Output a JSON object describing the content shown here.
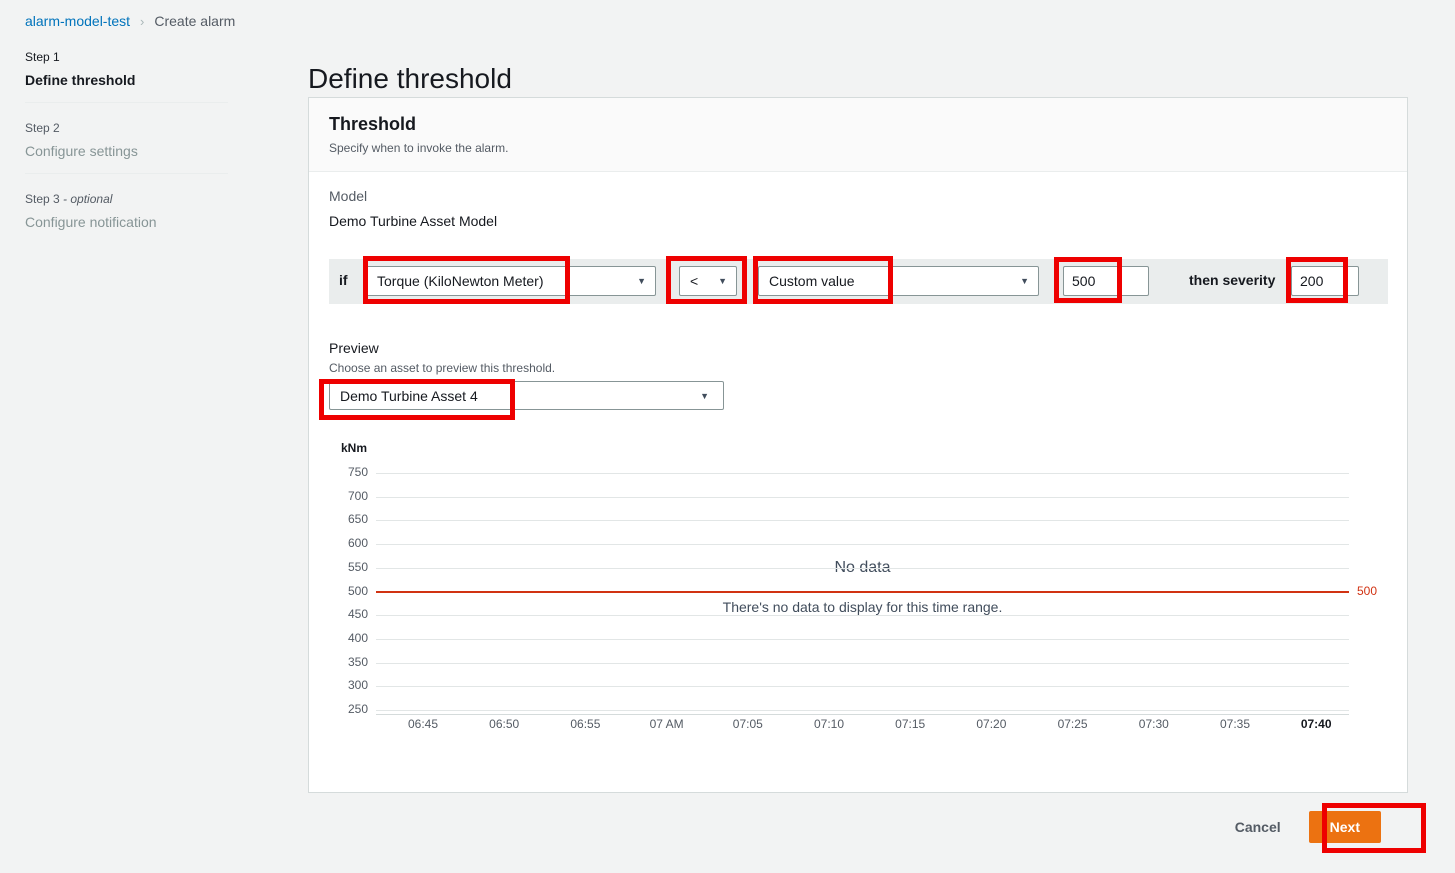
{
  "breadcrumb": {
    "link": "alarm-model-test",
    "separator": "›",
    "current": "Create alarm"
  },
  "steps": [
    {
      "step": "Step 1",
      "optional": "",
      "label": "Define threshold",
      "active": true
    },
    {
      "step": "Step 2",
      "optional": "",
      "label": "Configure settings",
      "active": false
    },
    {
      "step": "Step 3",
      "optional": "- optional",
      "label": "Configure notification",
      "active": false
    }
  ],
  "page_title": "Define threshold",
  "threshold_card": {
    "title": "Threshold",
    "description": "Specify when to invoke the alarm.",
    "model_label": "Model",
    "model_value": "Demo Turbine Asset Model",
    "rule": {
      "if_label": "if",
      "property_select": "Torque (KiloNewton Meter)",
      "operator_select": "<",
      "value_type_select": "Custom value",
      "value_input": "500",
      "then_label": "then severity",
      "severity_input": "200"
    },
    "preview": {
      "title": "Preview",
      "description": "Choose an asset to preview this threshold.",
      "asset_select": "Demo Turbine Asset 4"
    }
  },
  "chart_data": {
    "type": "line",
    "unit": "kNm",
    "ylabel": "kNm",
    "ylim": [
      250,
      750
    ],
    "y_ticks": [
      750,
      700,
      650,
      600,
      550,
      500,
      450,
      400,
      350,
      300,
      250
    ],
    "x_ticks": [
      "06:45",
      "06:50",
      "06:55",
      "07 AM",
      "07:05",
      "07:10",
      "07:15",
      "07:20",
      "07:25",
      "07:30",
      "07:35",
      "07:40"
    ],
    "series": [],
    "grid": true,
    "threshold": {
      "value": 500,
      "label": "500",
      "color": "#d13212"
    },
    "empty_title": "No data",
    "empty_message": "There's no data to display for this time range."
  },
  "footer": {
    "cancel": "Cancel",
    "next": "Next"
  },
  "colors": {
    "link": "#0073bb",
    "accent": "#ec7211",
    "threshold_red": "#d13212",
    "annotation_red": "#ee0000",
    "strip_gray": "#eaeded"
  }
}
